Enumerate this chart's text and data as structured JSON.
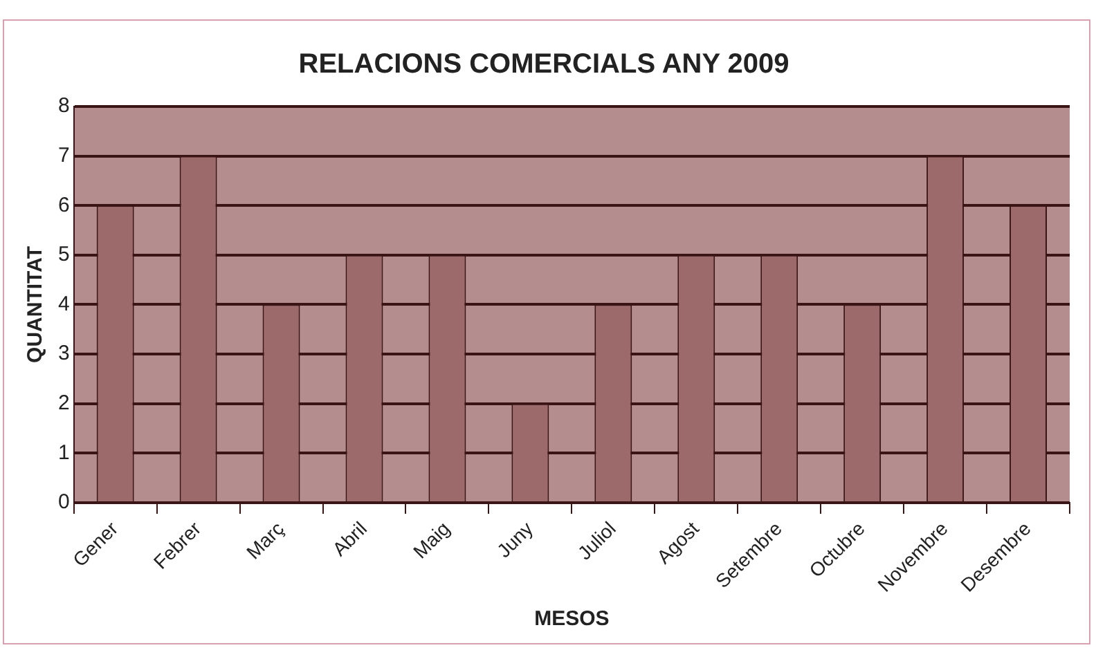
{
  "chart_data": {
    "type": "bar",
    "title": "RELACIONS COMERCIALS ANY 2009",
    "xlabel": "MESOS",
    "ylabel": "QUANTITAT",
    "categories": [
      "Gener",
      "Febrer",
      "Març",
      "Abril",
      "Maig",
      "Juny",
      "Juliol",
      "Agost",
      "Setembre",
      "Octubre",
      "Novembre",
      "Desembre"
    ],
    "values": [
      6,
      7,
      4,
      5,
      5,
      2,
      4,
      5,
      5,
      4,
      7,
      6
    ],
    "color": "#9c6a6a",
    "ylim": [
      0,
      8
    ],
    "yticks": [
      0,
      1,
      2,
      3,
      4,
      5,
      6,
      7,
      8
    ],
    "grid": "y",
    "legend": false
  }
}
